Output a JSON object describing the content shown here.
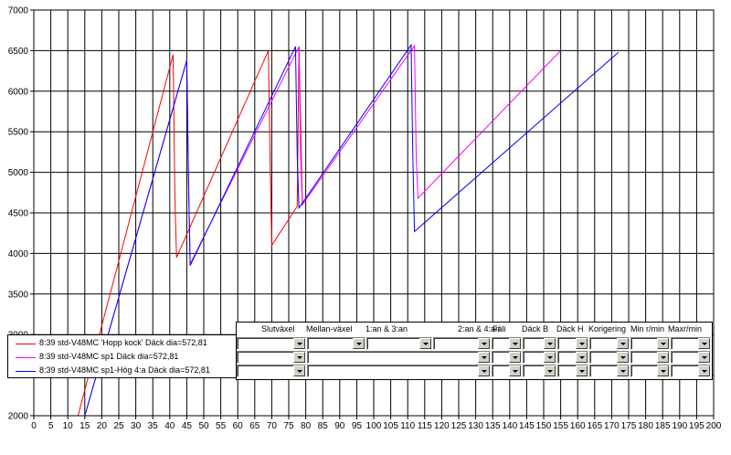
{
  "chart_data": {
    "type": "line",
    "title": "",
    "xlabel": "",
    "ylabel": "",
    "xlim": [
      0,
      200
    ],
    "ylim": [
      2000,
      7000
    ],
    "x_ticks": [
      0,
      5,
      10,
      15,
      20,
      25,
      30,
      35,
      40,
      45,
      50,
      55,
      60,
      65,
      70,
      75,
      80,
      85,
      90,
      95,
      100,
      105,
      110,
      115,
      120,
      125,
      130,
      135,
      140,
      145,
      150,
      155,
      160,
      165,
      170,
      175,
      180,
      185,
      190,
      195,
      200
    ],
    "y_ticks": [
      2000,
      2500,
      3000,
      3500,
      4000,
      4500,
      5000,
      5500,
      6000,
      6500,
      7000
    ],
    "grid": true,
    "legend_position": "bottom-left",
    "series": [
      {
        "name": "8:39 std-V48MC  'Hopp kock'  Däck dia=572,81",
        "color": "#ff0000",
        "points": [
          [
            13,
            2000
          ],
          [
            41,
            6450
          ],
          [
            41.5,
            4700
          ],
          [
            42,
            3950
          ],
          [
            69,
            6500
          ],
          [
            69.5,
            5200
          ],
          [
            70,
            4100
          ],
          [
            77.5,
            4580
          ],
          [
            78,
            6550
          ],
          [
            79,
            4600
          ]
        ]
      },
      {
        "name": "8:39 std-V48MC  sp1  Däck dia=572,81",
        "color": "#ff00ff",
        "points": [
          [
            15,
            2000
          ],
          [
            45,
            6380
          ],
          [
            45.5,
            4900
          ],
          [
            46,
            3870
          ],
          [
            78,
            6550
          ],
          [
            78.5,
            5200
          ],
          [
            79,
            4600
          ],
          [
            112,
            6560
          ],
          [
            112.5,
            5200
          ],
          [
            113,
            4680
          ],
          [
            155,
            6500
          ]
        ]
      },
      {
        "name": "8:39 std-V48MC  sp1-Hög 4:a  Däck dia=572,81",
        "color": "#0000ff",
        "points": [
          [
            15,
            2000
          ],
          [
            45,
            6380
          ],
          [
            45.5,
            4900
          ],
          [
            46,
            3850
          ],
          [
            77,
            6550
          ],
          [
            77.5,
            5200
          ],
          [
            78,
            4560
          ],
          [
            111,
            6570
          ],
          [
            111.5,
            5200
          ],
          [
            112,
            4270
          ],
          [
            172,
            6480
          ]
        ]
      }
    ]
  },
  "controls": {
    "headers": [
      "Slutväxel",
      "Mellan-växel",
      "1:an & 3:an",
      "2:an & 4:an",
      "Fäli",
      "Däck B",
      "Däck H",
      "Korigering",
      "Min r/min",
      "Maxr/min"
    ]
  }
}
